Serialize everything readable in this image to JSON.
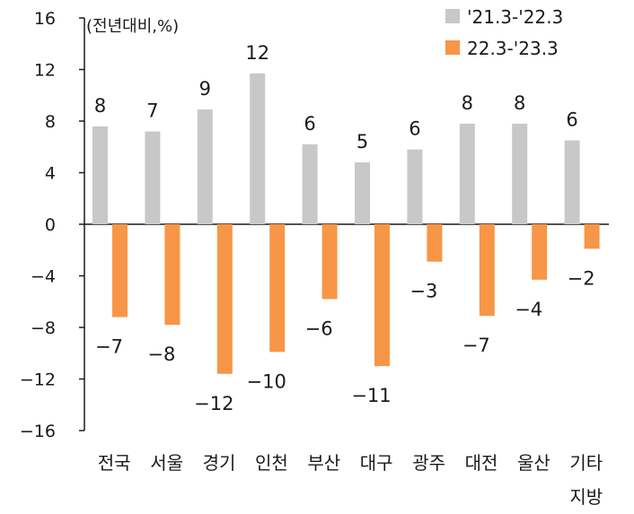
{
  "chart_data": {
    "type": "bar",
    "unit_label": "(전년대비,%)",
    "categories": [
      "전국",
      "서울",
      "경기",
      "인천",
      "부산",
      "대구",
      "광주",
      "대전",
      "울산",
      "기타\n지방"
    ],
    "series": [
      {
        "name": "'21.3-'22.3",
        "color": "#c8c8c8",
        "values": [
          7.6,
          7.2,
          8.9,
          11.7,
          6.2,
          4.8,
          5.8,
          7.8,
          7.8,
          6.5
        ],
        "labels": [
          "8",
          "7",
          "9",
          "12",
          "6",
          "5",
          "6",
          "8",
          "8",
          "6"
        ]
      },
      {
        "name": "22.3-'23.3",
        "color": "#f79646",
        "values": [
          -7.2,
          -7.8,
          -11.6,
          -9.9,
          -5.8,
          -11.0,
          -2.9,
          -7.1,
          -4.3,
          -1.9
        ],
        "labels": [
          "-7",
          "-8",
          "-12",
          "-10",
          "-6",
          "-11",
          "-3",
          "-7",
          "-4",
          "-2"
        ]
      }
    ],
    "yticks": [
      "16",
      "12",
      "8",
      "4",
      "0",
      "-4",
      "-8",
      "-12",
      "-16"
    ],
    "ylim": [
      -16,
      16
    ],
    "grid": false,
    "legend_position": "top-right"
  }
}
